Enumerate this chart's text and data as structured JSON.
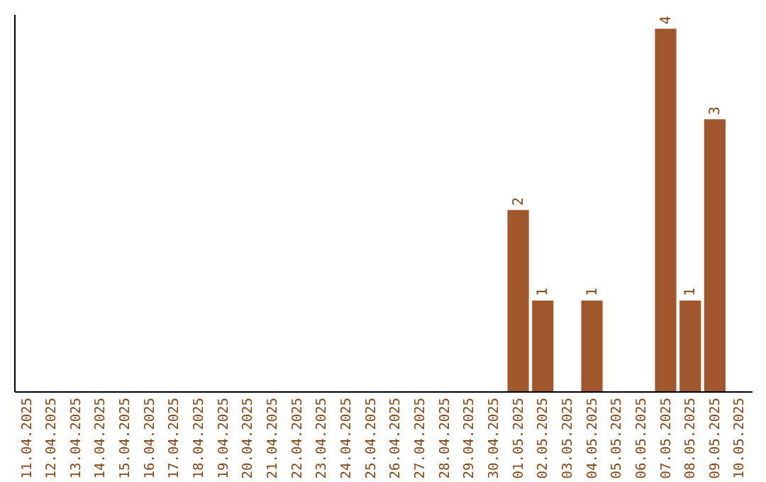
{
  "chart_data": {
    "type": "bar",
    "categories": [
      "11.04.2025",
      "12.04.2025",
      "13.04.2025",
      "14.04.2025",
      "15.04.2025",
      "16.04.2025",
      "17.04.2025",
      "18.04.2025",
      "19.04.2025",
      "20.04.2025",
      "21.04.2025",
      "22.04.2025",
      "23.04.2025",
      "24.04.2025",
      "25.04.2025",
      "26.04.2025",
      "27.04.2025",
      "28.04.2025",
      "29.04.2025",
      "30.04.2025",
      "01.05.2025",
      "02.05.2025",
      "03.05.2025",
      "04.05.2025",
      "05.05.2025",
      "06.05.2025",
      "07.05.2025",
      "08.05.2025",
      "09.05.2025",
      "10.05.2025"
    ],
    "values": [
      null,
      null,
      null,
      null,
      null,
      null,
      null,
      null,
      null,
      null,
      null,
      null,
      null,
      null,
      null,
      null,
      null,
      null,
      null,
      null,
      2,
      1,
      null,
      1,
      null,
      null,
      4,
      1,
      3,
      null
    ],
    "value_labels": [
      null,
      null,
      null,
      null,
      null,
      null,
      null,
      null,
      null,
      null,
      null,
      null,
      null,
      null,
      null,
      null,
      null,
      null,
      null,
      null,
      "2",
      "1",
      null,
      "1",
      null,
      null,
      "4",
      "1",
      "3",
      null
    ],
    "color": "#a0572b",
    "ylim": [
      0,
      4.16
    ],
    "tick_labels": "x",
    "grid": false
  }
}
